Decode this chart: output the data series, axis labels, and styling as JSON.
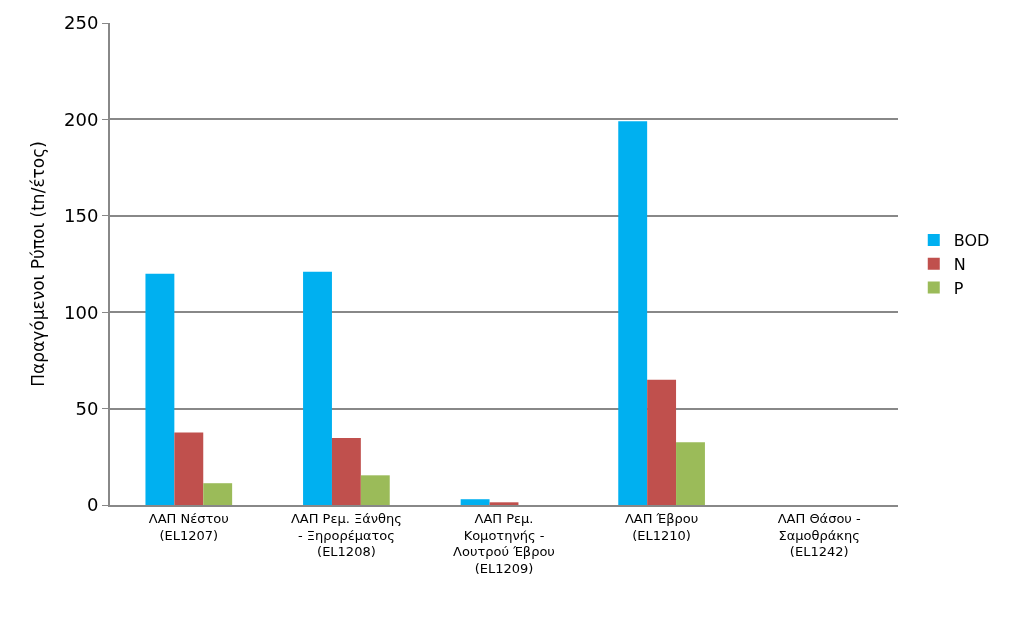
{
  "chart_data": {
    "type": "bar",
    "ylabel": "Παραγόμενοι Ρύποι (tn/έτος)",
    "categories": [
      "ΛΑΠ Νέστου\n(EL1207)",
      "ΛΑΠ Ρεμ. Ξάνθης\n- Ξηρορέματος\n(EL1208)",
      "ΛΑΠ Ρεμ.\nΚομοτηνής -\nΛουτρού Έβρου\n(EL1209)",
      "ΛΑΠ Έβρου\n(EL1210)",
      "ΛΑΠ Θάσου -\nΣαμοθράκης\n(EL1242)"
    ],
    "series": [
      {
        "name": "BOD",
        "color": "#00b0f0",
        "values": [
          120,
          121,
          3,
          199,
          0
        ]
      },
      {
        "name": "N",
        "color": "#c0504d",
        "values": [
          37.6,
          34.7,
          1.4,
          65,
          0
        ]
      },
      {
        "name": "P",
        "color": "#9bbb59",
        "values": [
          11.3,
          15.4,
          0,
          32.6,
          0
        ]
      }
    ],
    "ylim": [
      0,
      250
    ],
    "yticks": [
      0,
      50,
      100,
      150,
      200,
      250
    ],
    "grid": "y",
    "legend": "right"
  }
}
